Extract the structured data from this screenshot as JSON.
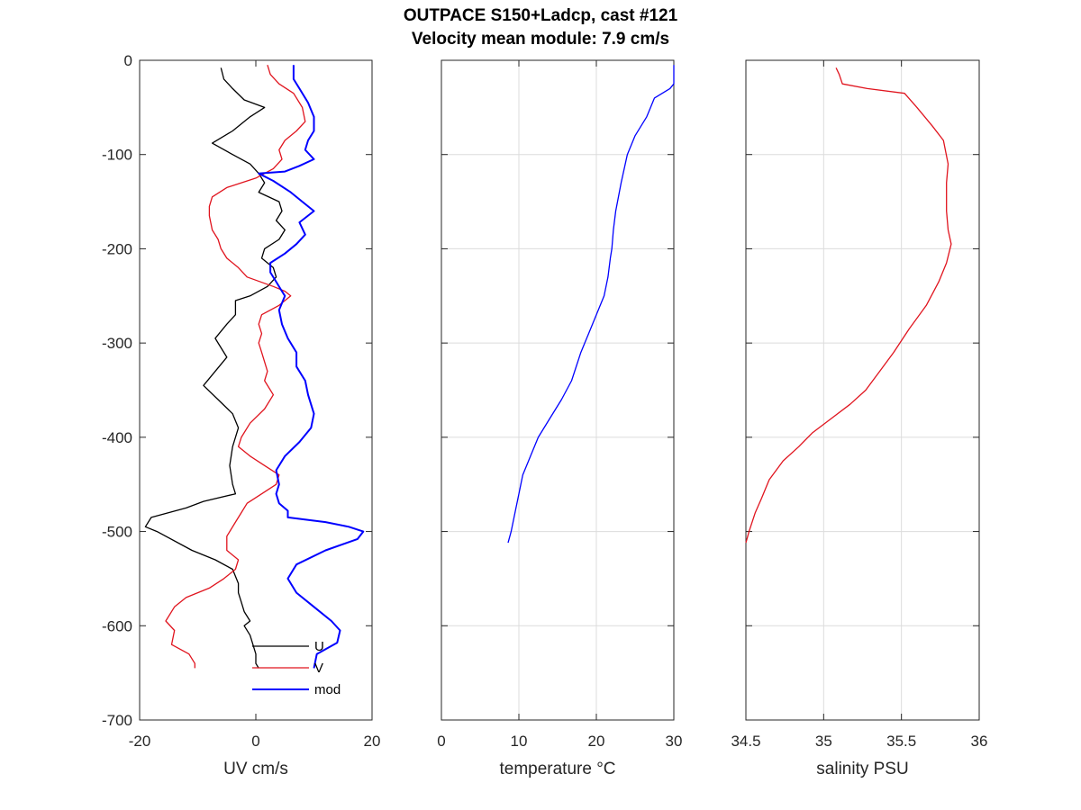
{
  "title_line1": "OUTPACE S150+Ladcp, cast #121",
  "title_line2": "Velocity mean module:  7.9 cm/s",
  "chart_data": [
    {
      "type": "line",
      "xlabel": "UV cm/s",
      "ylabel": "",
      "xlim": [
        -20,
        20
      ],
      "ylim": [
        -700,
        0
      ],
      "xticks": [
        -20,
        0,
        20
      ],
      "xtick_labels": [
        "-20",
        "0",
        "20"
      ],
      "yticks": [
        0,
        -100,
        -200,
        -300,
        -400,
        -500,
        -600,
        -700
      ],
      "ytick_labels": [
        "0",
        "-100",
        "-200",
        "-300",
        "-400",
        "-500",
        "-600",
        "-700"
      ],
      "grid": false,
      "legend": "bottom-right",
      "series": [
        {
          "name": "U",
          "color": "#000000",
          "x": [
            -6,
            -5.5,
            -4,
            -2,
            1.5,
            -1,
            -4,
            -7.5,
            -4,
            -1,
            0.5,
            1.5,
            0.5,
            4,
            4.5,
            3.5,
            5,
            4,
            1.5,
            1,
            3,
            3.5,
            2,
            -1,
            -3.5,
            -3.5,
            -5,
            -7,
            -6.5,
            -5,
            -7,
            -9,
            -6.5,
            -4,
            -3,
            -4,
            -4.5,
            -4,
            -3.5,
            -9,
            -12,
            -18,
            -19,
            -17,
            -11,
            -7,
            -4,
            -3,
            -3,
            -2.5,
            -2,
            -1,
            -2,
            -1,
            -0.5,
            0,
            0,
            0.5
          ],
          "y": [
            -8,
            -20,
            -30,
            -42,
            -50,
            -60,
            -75,
            -88,
            -100,
            -110,
            -120,
            -130,
            -140,
            -150,
            -160,
            -170,
            -180,
            -190,
            -200,
            -210,
            -220,
            -230,
            -240,
            -250,
            -255,
            -270,
            -280,
            -295,
            -300,
            -315,
            -330,
            -345,
            -360,
            -375,
            -390,
            -410,
            -430,
            -450,
            -460,
            -468,
            -475,
            -485,
            -495,
            -500,
            -520,
            -530,
            -540,
            -555,
            -565,
            -575,
            -585,
            -595,
            -600,
            -610,
            -620,
            -630,
            -640,
            -645
          ]
        },
        {
          "name": "V",
          "color": "#e0141e",
          "x": [
            2,
            2.5,
            4,
            6.5,
            8,
            8.5,
            7,
            5,
            4,
            4.5,
            3,
            0,
            -5,
            -7.5,
            -8,
            -8,
            -7.5,
            -6.5,
            -6,
            -5,
            -3,
            -1.5,
            3,
            5,
            6,
            4,
            1,
            0.5,
            1,
            0.5,
            1,
            1.5,
            2,
            1.5,
            3,
            1.5,
            -1,
            -2.5,
            -3,
            -1,
            1.5,
            4,
            3.5,
            1,
            -1.5,
            -2.5,
            -3.5,
            -5,
            -5,
            -3,
            -3.5,
            -5.5,
            -8,
            -12,
            -14,
            -15.5,
            -14,
            -14.5,
            -11.5,
            -10.5,
            -10.5
          ],
          "y": [
            -5,
            -15,
            -25,
            -35,
            -50,
            -65,
            -75,
            -85,
            -95,
            -105,
            -115,
            -125,
            -135,
            -145,
            -155,
            -165,
            -180,
            -190,
            -200,
            -210,
            -220,
            -230,
            -240,
            -245,
            -250,
            -260,
            -270,
            -280,
            -290,
            -300,
            -310,
            -320,
            -330,
            -340,
            -355,
            -370,
            -385,
            -400,
            -410,
            -420,
            -430,
            -440,
            -450,
            -460,
            -470,
            -480,
            -490,
            -505,
            -520,
            -530,
            -540,
            -550,
            -560,
            -570,
            -580,
            -595,
            -605,
            -620,
            -630,
            -640,
            -645
          ]
        },
        {
          "name": "mod",
          "color": "#0000ff",
          "x": [
            6.5,
            6.5,
            7.5,
            9,
            10,
            10,
            9,
            8.5,
            10,
            7.5,
            5,
            0.5,
            3,
            6,
            8,
            10,
            7.5,
            8.5,
            7,
            5,
            2.5,
            2.5,
            3.5,
            4.5,
            5,
            4,
            4.5,
            5.5,
            7,
            7,
            8.5,
            9,
            10,
            9.5,
            7.5,
            5,
            3.5,
            4,
            3.5,
            4,
            5.5,
            5.5,
            12,
            16,
            18.5,
            17.5,
            12,
            7,
            5.5,
            7,
            10,
            13,
            14.5,
            14,
            10.5,
            10
          ],
          "y": [
            -5,
            -20,
            -30,
            -45,
            -60,
            -75,
            -85,
            -95,
            -105,
            -112,
            -118,
            -120,
            -128,
            -140,
            -150,
            -160,
            -172,
            -185,
            -195,
            -205,
            -215,
            -225,
            -235,
            -245,
            -250,
            -265,
            -280,
            -295,
            -310,
            -325,
            -340,
            -355,
            -375,
            -390,
            -405,
            -420,
            -435,
            -450,
            -460,
            -470,
            -478,
            -485,
            -490,
            -495,
            -500,
            -508,
            -520,
            -535,
            -550,
            -565,
            -580,
            -595,
            -605,
            -618,
            -630,
            -645
          ]
        }
      ]
    },
    {
      "type": "line",
      "xlabel": "temperature °C",
      "ylabel": "",
      "xlim": [
        0,
        30
      ],
      "ylim": [
        -700,
        0
      ],
      "xticks": [
        0,
        10,
        20,
        30
      ],
      "xtick_labels": [
        "0",
        "10",
        "20",
        "30"
      ],
      "yticks": [
        0,
        -100,
        -200,
        -300,
        -400,
        -500,
        -600,
        -700
      ],
      "grid": true,
      "series": [
        {
          "name": "",
          "color": "#0000ff",
          "x": [
            30,
            30,
            29.5,
            27.5,
            26.5,
            25,
            24,
            23.2,
            22.5,
            22.2,
            22,
            21.8,
            21.5,
            21,
            20,
            19,
            18,
            16.8,
            15.5,
            14,
            12.5,
            11.5,
            10.5,
            10,
            9.5,
            9,
            8.6
          ],
          "y": [
            -5,
            -25,
            -30,
            -40,
            -60,
            -80,
            -100,
            -130,
            -160,
            -180,
            -200,
            -210,
            -230,
            -250,
            -270,
            -290,
            -310,
            -340,
            -360,
            -380,
            -400,
            -420,
            -440,
            -460,
            -480,
            -500,
            -512
          ]
        }
      ]
    },
    {
      "type": "line",
      "xlabel": "salinity PSU",
      "ylabel": "",
      "xlim": [
        34.5,
        36
      ],
      "ylim": [
        -700,
        0
      ],
      "xticks": [
        34.5,
        35,
        35.5,
        36
      ],
      "xtick_labels": [
        "34.5",
        "35",
        "35.5",
        "36"
      ],
      "yticks": [
        0,
        -100,
        -200,
        -300,
        -400,
        -500,
        -600,
        -700
      ],
      "grid": true,
      "series": [
        {
          "name": "",
          "color": "#e0141e",
          "x": [
            35.08,
            35.1,
            35.12,
            35.28,
            35.52,
            35.6,
            35.7,
            35.77,
            35.8,
            35.79,
            35.79,
            35.8,
            35.82,
            35.79,
            35.74,
            35.66,
            35.55,
            35.45,
            35.36,
            35.27,
            35.17,
            35.05,
            34.93,
            34.84,
            34.74,
            34.65,
            34.6,
            34.56,
            34.52,
            34.5
          ],
          "y": [
            -8,
            -15,
            -25,
            -30,
            -35,
            -50,
            -70,
            -85,
            -110,
            -130,
            -160,
            -180,
            -195,
            -215,
            -235,
            -260,
            -285,
            -310,
            -330,
            -350,
            -365,
            -380,
            -395,
            -410,
            -425,
            -445,
            -465,
            -480,
            -500,
            -512
          ]
        }
      ]
    }
  ]
}
